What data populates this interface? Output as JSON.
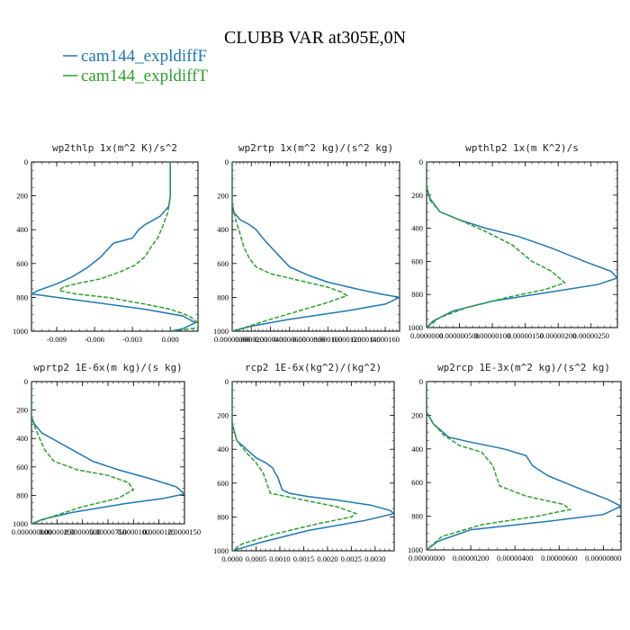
{
  "page": {
    "title": "CLUBB VAR at305E,0N",
    "legend": [
      {
        "label": "cam144_expldiffF",
        "color": "#1f77b4",
        "dash": false
      },
      {
        "label": "cam144_expldiffT",
        "color": "#2ca02c",
        "dash": true
      }
    ]
  },
  "chart_data": [
    {
      "type": "line",
      "title": "wp2thlp   1x(m^2 K)/s^2",
      "xlim": [
        -0.011,
        0.0022
      ],
      "ylim": [
        0,
        1000
      ],
      "xticks": [
        -0.009,
        -0.006,
        -0.003,
        0.0
      ],
      "xtick_labels": [
        "-0.009",
        "-0.006",
        "-0.003",
        "0.000"
      ],
      "yticks": [
        0,
        200,
        400,
        600,
        800,
        1000
      ],
      "ytick_labels": [
        "0",
        "200",
        "400",
        "600",
        "800",
        "1000"
      ],
      "series": [
        {
          "name": "cam144_expldiffF",
          "color": "#1f77b4",
          "dash": false,
          "x": [
            0.0,
            0.0,
            -0.0001,
            -0.0008,
            -0.0015,
            -0.002,
            -0.0025,
            -0.003,
            -0.0045,
            -0.005,
            -0.0055,
            -0.0065,
            -0.0078,
            -0.009,
            -0.0105,
            -0.011,
            -0.009,
            -0.006,
            -0.002,
            0.001,
            0.002,
            0.001,
            0.0
          ],
          "y": [
            0,
            200,
            260,
            320,
            350,
            370,
            400,
            450,
            480,
            520,
            560,
            620,
            680,
            720,
            760,
            780,
            800,
            830,
            870,
            910,
            950,
            985,
            1000
          ]
        },
        {
          "name": "cam144_expldiffT",
          "color": "#2ca02c",
          "dash": true,
          "x": [
            0.0,
            0.0,
            -0.0002,
            -0.0006,
            -0.001,
            -0.0015,
            -0.002,
            -0.0028,
            -0.004,
            -0.0055,
            -0.0075,
            -0.0085,
            -0.0088,
            -0.0075,
            -0.005,
            -0.002,
            0.0,
            0.0015,
            0.0022,
            0.0022,
            0.0
          ],
          "y": [
            0,
            200,
            300,
            380,
            450,
            500,
            560,
            610,
            650,
            690,
            720,
            740,
            760,
            780,
            800,
            840,
            870,
            910,
            950,
            980,
            1000
          ]
        }
      ]
    },
    {
      "type": "line",
      "title": "wp2rtp   1x(m^2 kg)/(s^2 kg)",
      "xlim": [
        0,
        0.000175
      ],
      "ylim": [
        0,
        1000
      ],
      "xticks": [
        0.0,
        2e-05,
        4e-05,
        6e-05,
        8e-05,
        0.0001,
        0.00012,
        0.00014,
        0.00016
      ],
      "xtick_labels": [
        "0.00000000",
        "0.0000200",
        "0.0000400",
        "0.0000600",
        "0.0000800",
        "0.000100",
        "0.000120",
        "0.000140",
        "0.000160"
      ],
      "yticks": [
        0,
        200,
        400,
        600,
        800,
        1000
      ],
      "ytick_labels": [
        "0",
        "200",
        "400",
        "600",
        "800",
        "1000"
      ],
      "series": [
        {
          "name": "cam144_expldiffF",
          "color": "#1f77b4",
          "dash": false,
          "x": [
            0.0,
            0.0,
            2e-06,
            8e-06,
            1.8e-05,
            2.5e-05,
            3.2e-05,
            4e-05,
            5e-05,
            6e-05,
            8e-05,
            0.0001,
            0.00013,
            0.000155,
            0.000175,
            0.00016,
            0.00012,
            6e-05,
            2e-05,
            0.0
          ],
          "y": [
            0,
            250,
            300,
            340,
            370,
            400,
            450,
            500,
            560,
            620,
            670,
            710,
            750,
            780,
            800,
            840,
            880,
            930,
            970,
            1000
          ]
        },
        {
          "name": "cam144_expldiffT",
          "color": "#2ca02c",
          "dash": true,
          "x": [
            0.0,
            0.0,
            4e-06,
            8e-06,
            1.2e-05,
            1.8e-05,
            2.5e-05,
            4e-05,
            7e-05,
            0.0001,
            0.000115,
            0.00012,
            0.0001,
            7e-05,
            4e-05,
            1.5e-05,
            0.0
          ],
          "y": [
            0,
            250,
            350,
            420,
            500,
            570,
            620,
            660,
            700,
            740,
            770,
            790,
            830,
            880,
            930,
            975,
            1000
          ]
        }
      ]
    },
    {
      "type": "line",
      "title": "wpthlp2   1x(m K^2)/s",
      "xlim": [
        0,
        2.9e-06
      ],
      "ylim": [
        0,
        1000
      ],
      "xticks": [
        0.0,
        5e-07,
        1e-06,
        1.5e-06,
        2e-06,
        2.5e-06
      ],
      "xtick_labels": [
        "0.0000000",
        "0.000000500",
        "0.00000100",
        "0.00000150",
        "0.00000200",
        "0.00000250"
      ],
      "yticks": [
        0,
        200,
        400,
        600,
        800,
        1000
      ],
      "ytick_labels": [
        "0",
        "200",
        "400",
        "600",
        "800",
        "1000"
      ],
      "series": [
        {
          "name": "cam144_expldiffF",
          "color": "#1f77b4",
          "dash": false,
          "x": [
            0.0,
            0.0,
            5e-08,
            2e-07,
            5e-07,
            9e-07,
            1.4e-06,
            1.9e-06,
            2.4e-06,
            2.8e-06,
            2.9e-06,
            2.6e-06,
            1.8e-06,
            1e-06,
            4e-07,
            1e-07,
            0.0
          ],
          "y": [
            0,
            150,
            220,
            300,
            350,
            400,
            450,
            520,
            600,
            660,
            700,
            740,
            790,
            840,
            900,
            960,
            1000
          ]
        },
        {
          "name": "cam144_expldiffT",
          "color": "#2ca02c",
          "dash": true,
          "x": [
            0.0,
            0.0,
            5e-08,
            2e-07,
            5e-07,
            9e-07,
            1.3e-06,
            1.6e-06,
            1.9e-06,
            2.1e-06,
            1.8e-06,
            1.2e-06,
            6e-07,
            2e-07,
            0.0
          ],
          "y": [
            0,
            150,
            230,
            300,
            350,
            420,
            500,
            600,
            660,
            730,
            770,
            820,
            880,
            940,
            1000
          ]
        }
      ]
    },
    {
      "type": "line",
      "title": "wprtp2   1E-6x(m kg)/(s kg)",
      "xlim": [
        0,
        1.5e-05
      ],
      "ylim": [
        0,
        1000
      ],
      "xticks": [
        0.0,
        2.5e-06,
        5e-06,
        7.5e-06,
        1e-05,
        1.25e-05,
        1.5e-05
      ],
      "xtick_labels": [
        "0.000000000",
        "0.00000250",
        "0.00000500",
        "0.00000750",
        "0.0000100",
        "0.0000125",
        "0.0000150"
      ],
      "yticks": [
        0,
        200,
        400,
        600,
        800,
        1000
      ],
      "ytick_labels": [
        "0",
        "200",
        "400",
        "600",
        "800",
        "1000"
      ],
      "series": [
        {
          "name": "cam144_expldiffF",
          "color": "#1f77b4",
          "dash": false,
          "x": [
            0.0,
            0.0,
            3e-07,
            1e-06,
            2.5e-06,
            4e-06,
            6e-06,
            8.5e-06,
            1.15e-05,
            1.42e-05,
            1.5e-05,
            1.3e-05,
            9e-06,
            4e-06,
            1e-06,
            0.0
          ],
          "y": [
            0,
            250,
            300,
            360,
            420,
            480,
            560,
            620,
            680,
            740,
            790,
            820,
            860,
            920,
            970,
            1000
          ]
        },
        {
          "name": "cam144_expldiffT",
          "color": "#2ca02c",
          "dash": true,
          "x": [
            0.0,
            0.0,
            4e-07,
            8e-07,
            1.3e-06,
            2.2e-06,
            4.5e-06,
            7.5e-06,
            9.5e-06,
            1e-05,
            8.5e-06,
            5e-06,
            2e-06,
            0.0
          ],
          "y": [
            0,
            250,
            330,
            400,
            480,
            560,
            620,
            660,
            710,
            760,
            820,
            880,
            950,
            1000
          ]
        }
      ]
    },
    {
      "type": "line",
      "title": "rcp2   1E-6x(kg^2)/(kg^2)",
      "xlim": [
        0,
        0.0034
      ],
      "ylim": [
        0,
        1000
      ],
      "xticks": [
        0.0,
        0.0005,
        0.001,
        0.0015,
        0.002,
        0.0025,
        0.003
      ],
      "xtick_labels": [
        "0.0000",
        "0.0005",
        "0.0010",
        "0.0015",
        "0.0020",
        "0.0025",
        "0.0030"
      ],
      "yticks": [
        0,
        200,
        400,
        600,
        800,
        1000
      ],
      "ytick_labels": [
        "0",
        "200",
        "400",
        "600",
        "800",
        "1000"
      ],
      "series": [
        {
          "name": "cam144_expldiffF",
          "color": "#1f77b4",
          "dash": false,
          "x": [
            0.0,
            0.0,
            0.0001,
            0.0003,
            0.0005,
            0.0007,
            0.00085,
            0.0009,
            0.00095,
            0.001,
            0.00105,
            0.0012,
            0.0016,
            0.0022,
            0.0029,
            0.0033,
            0.0034,
            0.0028,
            0.0016,
            0.0006,
            0.0
          ],
          "y": [
            0,
            250,
            350,
            400,
            450,
            480,
            510,
            540,
            560,
            600,
            640,
            660,
            680,
            700,
            730,
            760,
            780,
            820,
            880,
            950,
            1000
          ]
        },
        {
          "name": "cam144_expldiffT",
          "color": "#2ca02c",
          "dash": true,
          "x": [
            0.0,
            0.0,
            0.0001,
            0.0003,
            0.0005,
            0.00065,
            0.0007,
            0.00075,
            0.0008,
            0.0015,
            0.0022,
            0.0026,
            0.0025,
            0.0018,
            0.0009,
            0.0002,
            0.0
          ],
          "y": [
            0,
            250,
            350,
            420,
            480,
            540,
            580,
            620,
            660,
            700,
            740,
            780,
            800,
            840,
            900,
            960,
            1000
          ]
        }
      ]
    },
    {
      "type": "line",
      "title": "wp2rcp   1E-3x(m^2 kg)/(s^2 kg)",
      "xlim": [
        0,
        8.8e-06
      ],
      "ylim": [
        0,
        1000
      ],
      "xticks": [
        0.0,
        2e-06,
        4e-06,
        6e-06,
        8e-06
      ],
      "xtick_labels": [
        "0.00000000",
        "0.00000200",
        "0.00000400",
        "0.00000600",
        "0.00000800"
      ],
      "yticks": [
        0,
        200,
        400,
        600,
        800,
        1000
      ],
      "ytick_labels": [
        "0",
        "200",
        "400",
        "600",
        "800",
        "1000"
      ],
      "series": [
        {
          "name": "cam144_expldiffF",
          "color": "#1f77b4",
          "dash": false,
          "x": [
            0.0,
            0.0,
            3e-07,
            1e-06,
            2e-06,
            3.5e-06,
            4.5e-06,
            4.8e-06,
            5.5e-06,
            7e-06,
            8.2e-06,
            8.8e-06,
            8e-06,
            5.5e-06,
            2e-06,
            5e-07,
            0.0
          ],
          "y": [
            0,
            180,
            250,
            330,
            360,
            400,
            440,
            500,
            560,
            640,
            700,
            740,
            790,
            830,
            880,
            950,
            1000
          ]
        },
        {
          "name": "cam144_expldiffT",
          "color": "#2ca02c",
          "dash": true,
          "x": [
            0.0,
            0.0,
            3e-07,
            8e-07,
            1.5e-06,
            2.5e-06,
            3e-06,
            3.3e-06,
            4.5e-06,
            6.2e-06,
            6.5e-06,
            5e-06,
            2.5e-06,
            7e-07,
            0.0
          ],
          "y": [
            0,
            180,
            250,
            320,
            380,
            420,
            500,
            620,
            680,
            730,
            760,
            800,
            850,
            920,
            1000
          ]
        }
      ]
    }
  ]
}
